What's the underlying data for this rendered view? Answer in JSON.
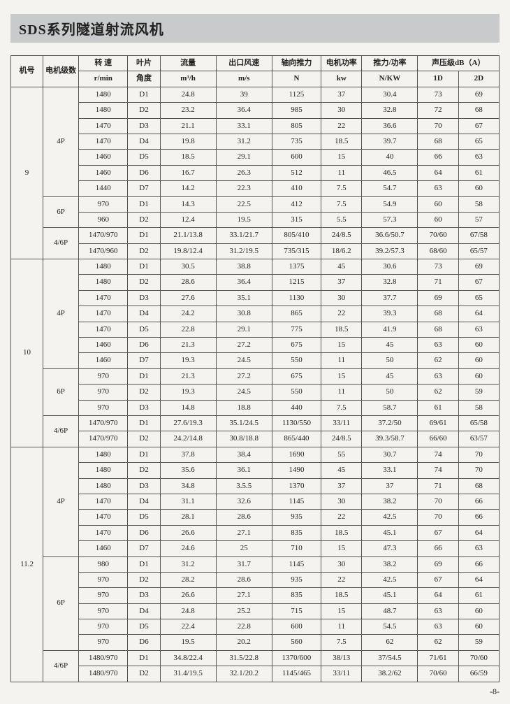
{
  "title": "SDS系列隧道射流风机",
  "page_number": "-8-",
  "columns": {
    "model": "机号",
    "poles": "电机级数",
    "speed": "转 速",
    "speed_unit": "r/min",
    "blade": "叶片",
    "blade_unit": "角度",
    "flow": "流量",
    "flow_unit": "m³/h",
    "wind": "出口风速",
    "wind_unit": "m/s",
    "thrust": "轴向推力",
    "thrust_unit": "N",
    "power": "电机功率",
    "power_unit": "kw",
    "ratio": "推力/功率",
    "ratio_unit": "N/KW",
    "sound": "声压级dB（A）",
    "sound_1d": "1D",
    "sound_2d": "2D"
  },
  "groups": [
    {
      "model": "9",
      "blocks": [
        {
          "poles": "4P",
          "rows": [
            [
              "1480",
              "D1",
              "24.8",
              "39",
              "1125",
              "37",
              "30.4",
              "73",
              "69"
            ],
            [
              "1480",
              "D2",
              "23.2",
              "36.4",
              "985",
              "30",
              "32.8",
              "72",
              "68"
            ],
            [
              "1470",
              "D3",
              "21.1",
              "33.1",
              "805",
              "22",
              "36.6",
              "70",
              "67"
            ],
            [
              "1470",
              "D4",
              "19.8",
              "31.2",
              "735",
              "18.5",
              "39.7",
              "68",
              "65"
            ],
            [
              "1460",
              "D5",
              "18.5",
              "29.1",
              "600",
              "15",
              "40",
              "66",
              "63"
            ],
            [
              "1460",
              "D6",
              "16.7",
              "26.3",
              "512",
              "11",
              "46.5",
              "64",
              "61"
            ],
            [
              "1440",
              "D7",
              "14.2",
              "22.3",
              "410",
              "7.5",
              "54.7",
              "63",
              "60"
            ]
          ]
        },
        {
          "poles": "6P",
          "rows": [
            [
              "970",
              "D1",
              "14.3",
              "22.5",
              "412",
              "7.5",
              "54.9",
              "60",
              "58"
            ],
            [
              "960",
              "D2",
              "12.4",
              "19.5",
              "315",
              "5.5",
              "57.3",
              "60",
              "57"
            ]
          ]
        },
        {
          "poles": "4/6P",
          "rows": [
            [
              "1470/970",
              "D1",
              "21.1/13.8",
              "33.1/21.7",
              "805/410",
              "24/8.5",
              "36.6/50.7",
              "70/60",
              "67/58"
            ],
            [
              "1470/960",
              "D2",
              "19.8/12.4",
              "31.2/19.5",
              "735/315",
              "18/6.2",
              "39.2/57.3",
              "68/60",
              "65/57"
            ]
          ]
        }
      ]
    },
    {
      "model": "10",
      "blocks": [
        {
          "poles": "4P",
          "rows": [
            [
              "1480",
              "D1",
              "30.5",
              "38.8",
              "1375",
              "45",
              "30.6",
              "73",
              "69"
            ],
            [
              "1480",
              "D2",
              "28.6",
              "36.4",
              "1215",
              "37",
              "32.8",
              "71",
              "67"
            ],
            [
              "1470",
              "D3",
              "27.6",
              "35.1",
              "1130",
              "30",
              "37.7",
              "69",
              "65"
            ],
            [
              "1470",
              "D4",
              "24.2",
              "30.8",
              "865",
              "22",
              "39.3",
              "68",
              "64"
            ],
            [
              "1470",
              "D5",
              "22.8",
              "29.1",
              "775",
              "18.5",
              "41.9",
              "68",
              "63"
            ],
            [
              "1460",
              "D6",
              "21.3",
              "27.2",
              "675",
              "15",
              "45",
              "63",
              "60"
            ],
            [
              "1460",
              "D7",
              "19.3",
              "24.5",
              "550",
              "11",
              "50",
              "62",
              "60"
            ]
          ]
        },
        {
          "poles": "6P",
          "rows": [
            [
              "970",
              "D1",
              "21.3",
              "27.2",
              "675",
              "15",
              "45",
              "63",
              "60"
            ],
            [
              "970",
              "D2",
              "19.3",
              "24.5",
              "550",
              "11",
              "50",
              "62",
              "59"
            ],
            [
              "970",
              "D3",
              "14.8",
              "18.8",
              "440",
              "7.5",
              "58.7",
              "61",
              "58"
            ]
          ]
        },
        {
          "poles": "4/6P",
          "rows": [
            [
              "1470/970",
              "D1",
              "27.6/19.3",
              "35.1/24.5",
              "1130/550",
              "33/11",
              "37.2/50",
              "69/61",
              "65/58"
            ],
            [
              "1470/970",
              "D2",
              "24.2/14.8",
              "30.8/18.8",
              "865/440",
              "24/8.5",
              "39.3/58.7",
              "66/60",
              "63/57"
            ]
          ]
        }
      ]
    },
    {
      "model": "11.2",
      "blocks": [
        {
          "poles": "4P",
          "rows": [
            [
              "1480",
              "D1",
              "37.8",
              "38.4",
              "1690",
              "55",
              "30.7",
              "74",
              "70"
            ],
            [
              "1480",
              "D2",
              "35.6",
              "36.1",
              "1490",
              "45",
              "33.1",
              "74",
              "70"
            ],
            [
              "1480",
              "D3",
              "34.8",
              "3.5.5",
              "1370",
              "37",
              "37",
              "71",
              "68"
            ],
            [
              "1470",
              "D4",
              "31.1",
              "32.6",
              "1145",
              "30",
              "38.2",
              "70",
              "66"
            ],
            [
              "1470",
              "D5",
              "28.1",
              "28.6",
              "935",
              "22",
              "42.5",
              "70",
              "66"
            ],
            [
              "1470",
              "D6",
              "26.6",
              "27.1",
              "835",
              "18.5",
              "45.1",
              "67",
              "64"
            ],
            [
              "1460",
              "D7",
              "24.6",
              "25",
              "710",
              "15",
              "47.3",
              "66",
              "63"
            ]
          ]
        },
        {
          "poles": "6P",
          "rows": [
            [
              "980",
              "D1",
              "31.2",
              "31.7",
              "1145",
              "30",
              "38.2",
              "69",
              "66"
            ],
            [
              "970",
              "D2",
              "28.2",
              "28.6",
              "935",
              "22",
              "42.5",
              "67",
              "64"
            ],
            [
              "970",
              "D3",
              "26.6",
              "27.1",
              "835",
              "18.5",
              "45.1",
              "64",
              "61"
            ],
            [
              "970",
              "D4",
              "24.8",
              "25.2",
              "715",
              "15",
              "48.7",
              "63",
              "60"
            ],
            [
              "970",
              "D5",
              "22.4",
              "22.8",
              "600",
              "11",
              "54.5",
              "63",
              "60"
            ],
            [
              "970",
              "D6",
              "19.5",
              "20.2",
              "560",
              "7.5",
              "62",
              "62",
              "59"
            ]
          ]
        },
        {
          "poles": "4/6P",
          "rows": [
            [
              "1480/970",
              "D1",
              "34.8/22.4",
              "31.5/22.8",
              "1370/600",
              "38/13",
              "37/54.5",
              "71/61",
              "70/60"
            ],
            [
              "1480/970",
              "D2",
              "31.4/19.5",
              "32.1/20.2",
              "1145/465",
              "33/11",
              "38.2/62",
              "70/60",
              "66/59"
            ]
          ]
        }
      ]
    }
  ]
}
